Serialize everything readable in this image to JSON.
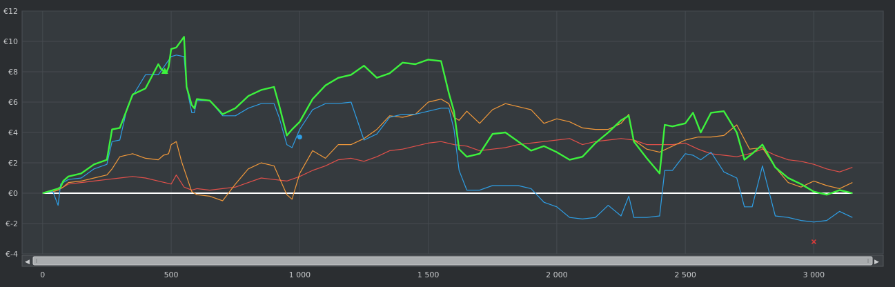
{
  "chart_data": {
    "type": "line",
    "title": "",
    "xlabel": "",
    "ylabel": "",
    "xlim": [
      -80,
      3270
    ],
    "ylim": [
      -4,
      12
    ],
    "x_ticks": [
      0,
      500,
      1000,
      1500,
      2000,
      2500,
      3000
    ],
    "x_tick_labels": [
      "0",
      "500",
      "1 000",
      "1 500",
      "2 000",
      "2 500",
      "3 000"
    ],
    "y_ticks": [
      -4,
      -2,
      0,
      2,
      4,
      6,
      8,
      10,
      12
    ],
    "y_tick_labels": [
      "€-4",
      "€-2",
      "€0",
      "€2",
      "€4",
      "€6",
      "€8",
      "€10",
      "€12"
    ],
    "grid": true,
    "legend": "none",
    "zero_line_color": "#ffffff",
    "series": [
      {
        "key": "green",
        "color": "#3df23d",
        "x": [
          0,
          40,
          60,
          70,
          80,
          100,
          150,
          200,
          250,
          270,
          300,
          330,
          350,
          400,
          450,
          460,
          480,
          490,
          500,
          520,
          550,
          560,
          580,
          590,
          600,
          650,
          700,
          750,
          800,
          850,
          900,
          920,
          950,
          970,
          1000,
          1050,
          1100,
          1150,
          1200,
          1250,
          1300,
          1350,
          1400,
          1450,
          1500,
          1550,
          1580,
          1600,
          1620,
          1650,
          1700,
          1750,
          1800,
          1850,
          1900,
          1950,
          2000,
          2050,
          2100,
          2150,
          2200,
          2250,
          2280,
          2300,
          2350,
          2400,
          2420,
          2450,
          2500,
          2530,
          2560,
          2600,
          2650,
          2700,
          2730,
          2760,
          2800,
          2850,
          2900,
          2950,
          3000,
          3050,
          3100,
          3150
        ],
        "y": [
          0,
          0.2,
          0.3,
          0.4,
          0.8,
          1.1,
          1.3,
          1.9,
          2.2,
          4.2,
          4.3,
          5.6,
          6.5,
          6.9,
          8.5,
          8.2,
          7.9,
          8.3,
          9.5,
          9.6,
          10.3,
          7.0,
          5.8,
          5.6,
          6.2,
          6.1,
          5.2,
          5.6,
          6.4,
          6.8,
          7.0,
          5.8,
          3.8,
          4.2,
          4.7,
          6.2,
          7.1,
          7.6,
          7.8,
          8.4,
          7.6,
          7.9,
          8.6,
          8.5,
          8.8,
          8.7,
          6.6,
          5.4,
          2.9,
          2.4,
          2.6,
          3.9,
          4.0,
          3.4,
          2.8,
          3.1,
          2.7,
          2.2,
          2.4,
          3.3,
          4.0,
          4.8,
          5.1,
          3.4,
          2.3,
          1.3,
          4.5,
          4.4,
          4.6,
          5.3,
          4.0,
          5.3,
          5.4,
          4.0,
          2.2,
          2.6,
          3.2,
          1.7,
          1.0,
          0.6,
          0.1,
          -0.1,
          0.2,
          0.0
        ]
      },
      {
        "key": "blue",
        "color": "#2e9fe6",
        "x": [
          0,
          40,
          60,
          70,
          80,
          100,
          150,
          200,
          250,
          270,
          300,
          330,
          350,
          400,
          450,
          500,
          520,
          550,
          560,
          580,
          590,
          600,
          650,
          700,
          750,
          800,
          850,
          900,
          920,
          950,
          970,
          1000,
          1050,
          1100,
          1150,
          1200,
          1250,
          1300,
          1350,
          1400,
          1450,
          1500,
          1550,
          1580,
          1600,
          1620,
          1650,
          1700,
          1750,
          1800,
          1850,
          1900,
          1950,
          2000,
          2050,
          2100,
          2150,
          2200,
          2250,
          2280,
          2300,
          2350,
          2400,
          2420,
          2450,
          2500,
          2530,
          2560,
          2600,
          2650,
          2700,
          2730,
          2760,
          2800,
          2850,
          2900,
          2950,
          3000,
          3050,
          3100,
          3150
        ],
        "y": [
          0,
          0.1,
          -0.8,
          0.6,
          0.7,
          0.9,
          1.0,
          1.6,
          1.9,
          3.4,
          3.5,
          5.7,
          6.4,
          7.8,
          7.8,
          9.0,
          9.1,
          9.0,
          7.0,
          5.3,
          5.3,
          6.1,
          6.1,
          5.1,
          5.1,
          5.6,
          5.9,
          5.9,
          5.0,
          3.2,
          3.0,
          4.2,
          5.5,
          5.9,
          5.9,
          6.0,
          3.5,
          3.9,
          5.0,
          5.2,
          5.2,
          5.4,
          5.6,
          5.6,
          4.2,
          1.5,
          0.2,
          0.2,
          0.5,
          0.5,
          0.5,
          0.3,
          -0.6,
          -0.9,
          -1.6,
          -1.7,
          -1.6,
          -0.8,
          -1.5,
          -0.2,
          -1.6,
          -1.6,
          -1.5,
          1.5,
          1.5,
          2.6,
          2.5,
          2.2,
          2.7,
          1.4,
          1.0,
          -0.9,
          -0.9,
          1.8,
          -1.5,
          -1.6,
          -1.8,
          -1.9,
          -1.8,
          -1.2,
          -1.6
        ]
      },
      {
        "key": "orange",
        "color": "#f2993a",
        "x": [
          0,
          40,
          60,
          70,
          80,
          100,
          150,
          200,
          250,
          270,
          300,
          350,
          400,
          450,
          470,
          490,
          500,
          520,
          540,
          580,
          600,
          650,
          700,
          750,
          800,
          850,
          900,
          950,
          970,
          1000,
          1050,
          1100,
          1150,
          1200,
          1250,
          1300,
          1350,
          1400,
          1450,
          1500,
          1550,
          1580,
          1600,
          1620,
          1650,
          1700,
          1750,
          1800,
          1850,
          1900,
          1950,
          2000,
          2050,
          2100,
          2150,
          2200,
          2250,
          2280,
          2300,
          2350,
          2400,
          2450,
          2500,
          2550,
          2600,
          2650,
          2700,
          2750,
          2800,
          2850,
          2900,
          2950,
          3000,
          3050,
          3100,
          3150
        ],
        "y": [
          0,
          0.1,
          0.2,
          0.3,
          0.4,
          0.7,
          0.8,
          1.0,
          1.2,
          1.6,
          2.4,
          2.6,
          2.3,
          2.2,
          2.5,
          2.6,
          3.2,
          3.4,
          2.1,
          0.1,
          -0.1,
          -0.2,
          -0.5,
          0.6,
          1.6,
          2.0,
          1.8,
          -0.1,
          -0.4,
          1.3,
          2.8,
          2.3,
          3.2,
          3.2,
          3.6,
          4.2,
          5.1,
          5.0,
          5.2,
          6.0,
          6.2,
          5.9,
          5.0,
          4.8,
          5.4,
          4.6,
          5.5,
          5.9,
          5.7,
          5.5,
          4.6,
          4.9,
          4.7,
          4.3,
          4.2,
          4.2,
          4.6,
          5.2,
          3.5,
          2.9,
          2.7,
          3.1,
          3.5,
          3.7,
          3.7,
          3.8,
          4.5,
          2.9,
          3.0,
          1.7,
          0.7,
          0.4,
          0.8,
          0.5,
          0.3,
          0.7
        ]
      },
      {
        "key": "red",
        "color": "#e3504a",
        "x": [
          0,
          40,
          60,
          80,
          100,
          150,
          200,
          250,
          300,
          350,
          400,
          450,
          500,
          520,
          550,
          580,
          600,
          650,
          700,
          750,
          800,
          850,
          900,
          950,
          1000,
          1050,
          1100,
          1150,
          1200,
          1250,
          1300,
          1350,
          1400,
          1450,
          1500,
          1550,
          1600,
          1650,
          1700,
          1750,
          1800,
          1850,
          1900,
          1950,
          2000,
          2050,
          2100,
          2150,
          2200,
          2250,
          2300,
          2350,
          2400,
          2450,
          2500,
          2550,
          2600,
          2650,
          2700,
          2750,
          2800,
          2850,
          2900,
          2950,
          3000,
          3050,
          3100,
          3150
        ],
        "y": [
          0,
          0.1,
          0.2,
          0.4,
          0.6,
          0.7,
          0.8,
          0.9,
          1.0,
          1.1,
          1.0,
          0.8,
          0.6,
          1.2,
          0.4,
          0.2,
          0.3,
          0.2,
          0.3,
          0.4,
          0.7,
          1.0,
          0.9,
          0.8,
          1.1,
          1.5,
          1.8,
          2.2,
          2.3,
          2.1,
          2.4,
          2.8,
          2.9,
          3.1,
          3.3,
          3.4,
          3.2,
          3.1,
          2.8,
          2.9,
          3.0,
          3.2,
          3.3,
          3.4,
          3.5,
          3.6,
          3.2,
          3.4,
          3.5,
          3.6,
          3.5,
          3.2,
          3.2,
          3.2,
          3.3,
          2.9,
          2.6,
          2.5,
          2.4,
          2.6,
          2.9,
          2.5,
          2.2,
          2.1,
          1.9,
          1.6,
          1.4,
          1.7
        ]
      }
    ],
    "markers": [
      {
        "label": "",
        "shape": "triangle",
        "color": "#3df23d",
        "x": 475,
        "y": 8.0
      },
      {
        "label": "",
        "shape": "circle",
        "color": "#2e9fe6",
        "x": 1000,
        "y": 3.7
      },
      {
        "label": "",
        "shape": "cross",
        "color": "#d63a3a",
        "x": 3000,
        "y": -3.2
      }
    ]
  },
  "scrollbar": {
    "left_arrow": "◀",
    "right_arrow": "▶",
    "thumb_start": 0.0,
    "thumb_end": 1.0
  }
}
